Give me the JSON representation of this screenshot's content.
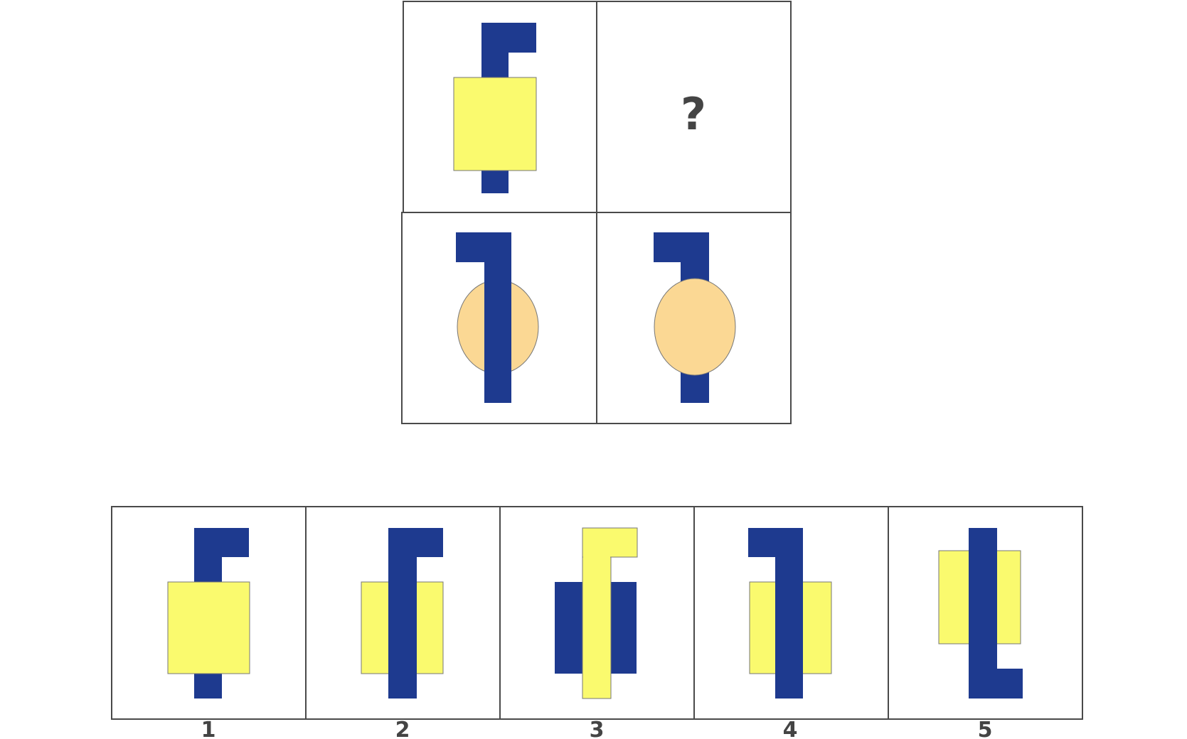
{
  "puzzle": {
    "question_mark": "?",
    "colors": {
      "blue": "#1e3a8f",
      "yellow": "#fafa6e",
      "tan": "#fbd894",
      "border": "#4a4a4a",
      "text": "#444444"
    }
  },
  "answers": {
    "labels": [
      "1",
      "2",
      "3",
      "4",
      "5"
    ]
  }
}
